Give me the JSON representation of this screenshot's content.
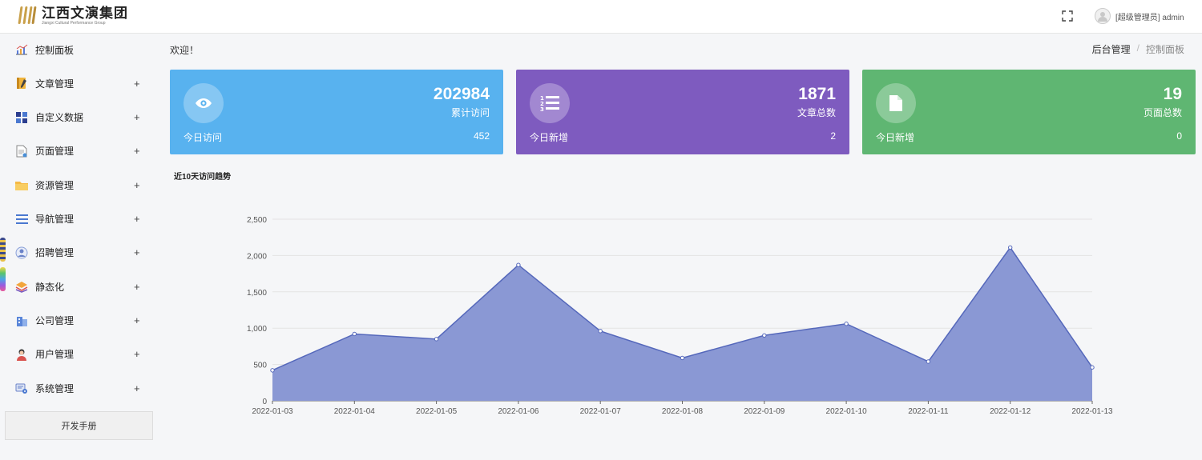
{
  "header": {
    "logo_title": "江西文演集团",
    "logo_subtitle": "Jiangxi Cultural Performance Group",
    "fullscreen_icon": "fullscreen-icon",
    "user_label": "[超级管理员] admin"
  },
  "sidebar": {
    "items": [
      {
        "label": "控制面板",
        "icon": "chart-icon",
        "expandable": false
      },
      {
        "label": "文章管理",
        "icon": "notebook-icon",
        "expandable": true
      },
      {
        "label": "自定义数据",
        "icon": "grid-icon",
        "expandable": true
      },
      {
        "label": "页面管理",
        "icon": "page-icon",
        "expandable": true
      },
      {
        "label": "资源管理",
        "icon": "folder-icon",
        "expandable": true
      },
      {
        "label": "导航管理",
        "icon": "menu-icon",
        "expandable": true
      },
      {
        "label": "招聘管理",
        "icon": "recruit-icon",
        "expandable": true
      },
      {
        "label": "静态化",
        "icon": "layers-icon",
        "expandable": true
      },
      {
        "label": "公司管理",
        "icon": "company-icon",
        "expandable": true
      },
      {
        "label": "用户管理",
        "icon": "user-icon",
        "expandable": true
      },
      {
        "label": "系统管理",
        "icon": "settings-icon",
        "expandable": true
      }
    ],
    "plus": "+",
    "dev_manual": "开发手册"
  },
  "main": {
    "welcome": "欢迎！",
    "breadcrumb": [
      "后台管理",
      "/",
      "控制面板"
    ]
  },
  "cards": [
    {
      "value": "202984",
      "label": "累计访问",
      "foot_label": "今日访问",
      "foot_value": "452",
      "color": "#58b2ef",
      "icon": "eye-icon"
    },
    {
      "value": "1871",
      "label": "文章总数",
      "foot_label": "今日新增",
      "foot_value": "2",
      "color": "#7e5bbf",
      "icon": "list-icon"
    },
    {
      "value": "19",
      "label": "页面总数",
      "foot_label": "今日新增",
      "foot_value": "0",
      "color": "#5fb672",
      "icon": "file-icon"
    }
  ],
  "chart_data": {
    "type": "area",
    "title": "近10天访问趋势",
    "x": [
      "2022-01-03",
      "2022-01-04",
      "2022-01-05",
      "2022-01-06",
      "2022-01-07",
      "2022-01-08",
      "2022-01-09",
      "2022-01-10",
      "2022-01-11",
      "2022-01-12",
      "2022-01-13"
    ],
    "series": [
      {
        "values": [
          420,
          920,
          850,
          1870,
          960,
          590,
          900,
          1060,
          540,
          2110,
          460
        ]
      }
    ],
    "ylim": [
      0,
      2500
    ],
    "yticks": [
      0,
      500,
      1000,
      1500,
      2000,
      2500
    ],
    "ytick_labels": [
      "0",
      "500",
      "1,000",
      "1,500",
      "2,000",
      "2,500"
    ],
    "grid": true,
    "fill_color": "#8a98d4",
    "line_color": "#5568bb"
  }
}
